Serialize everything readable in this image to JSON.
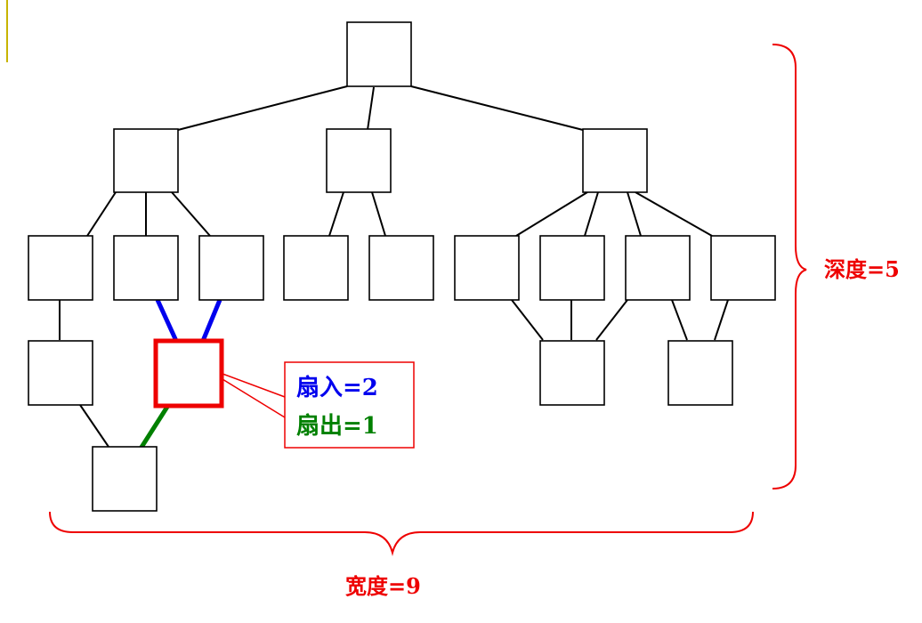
{
  "colors": {
    "annotation": "#ee0000",
    "fan_in": "#0000ee",
    "fan_out": "#008000",
    "highlight": "#ee0000",
    "accent_bar": "#c8b400"
  },
  "annotations": {
    "fan_in_label": "扇入=2",
    "fan_out_label": "扇出=1",
    "depth_label": "深度=5",
    "width_label": "宽度=9"
  }
}
